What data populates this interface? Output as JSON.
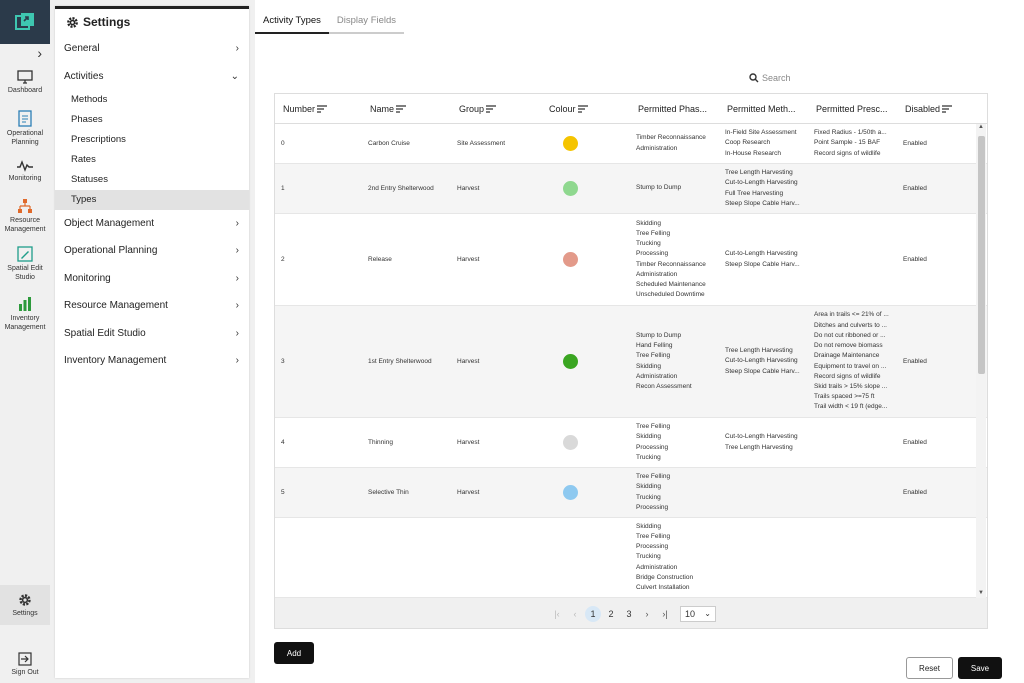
{
  "rail": {
    "items": [
      {
        "label_line1": "Dashboard",
        "label_line2": "",
        "icon": "monitor-icon"
      },
      {
        "label_line1": "Operational",
        "label_line2": "Planning",
        "icon": "clipboard-icon"
      },
      {
        "label_line1": "Monitoring",
        "label_line2": "",
        "icon": "pulse-icon"
      },
      {
        "label_line1": "Resource",
        "label_line2": "Management",
        "icon": "hierarchy-icon"
      },
      {
        "label_line1": "Spatial Edit",
        "label_line2": "Studio",
        "icon": "pencil-map-icon"
      },
      {
        "label_line1": "Inventory",
        "label_line2": "Management",
        "icon": "bar-chart-icon"
      }
    ],
    "settings_label": "Settings",
    "signout_label": "Sign Out",
    "expand_icon": "chevron-right-icon"
  },
  "panel": {
    "title": "Settings",
    "sections": {
      "general": "General",
      "activities": "Activities",
      "object_management": "Object Management",
      "operational_planning": "Operational Planning",
      "monitoring": "Monitoring",
      "resource_management": "Resource Management",
      "spatial_edit_studio": "Spatial Edit Studio",
      "inventory_management": "Inventory Management"
    },
    "activity_items": [
      "Methods",
      "Phases",
      "Prescriptions",
      "Rates",
      "Statuses",
      "Types"
    ],
    "selected_item": "Types"
  },
  "tabs": [
    {
      "label": "Activity Types",
      "active": true
    },
    {
      "label": "Display Fields",
      "active": false
    }
  ],
  "search": {
    "placeholder": "Search"
  },
  "grid": {
    "columns": [
      "Number",
      "Name",
      "Group",
      "Colour",
      "Permitted Phas...",
      "Permitted Meth...",
      "Permitted Presc...",
      "Disabled"
    ],
    "rows": [
      {
        "number": "0",
        "name": "Carbon Cruise",
        "group": "Site Assessment",
        "colour": "#f5c400",
        "phases": [
          "Timber Reconnaissance",
          "Administration"
        ],
        "methods": [
          "In-Field Site Assessment",
          "Coop Research",
          "In-House Research"
        ],
        "prescriptions": [
          "Fixed Radius - 1/50th a...",
          "Point Sample - 15 BAF",
          "Record signs of wildlife"
        ],
        "disabled": "Enabled"
      },
      {
        "number": "1",
        "name": "2nd Entry Shelterwood",
        "group": "Harvest",
        "colour": "#8fd88f",
        "phases": [
          "Stump to Dump"
        ],
        "methods": [
          "Tree Length Harvesting",
          "Cut-to-Length Harvesting",
          "Full Tree Harvesting",
          "Steep Slope Cable Harv..."
        ],
        "prescriptions": [],
        "disabled": "Enabled"
      },
      {
        "number": "2",
        "name": "Release",
        "group": "Harvest",
        "colour": "#e39a8a",
        "phases": [
          "Skidding",
          "Tree Felling",
          "Trucking",
          "Processing",
          "Timber Reconnaissance",
          "Administration",
          "Scheduled Maintenance",
          "Unscheduled Downtime"
        ],
        "methods": [
          "Cut-to-Length Harvesting",
          "Steep Slope Cable Harv..."
        ],
        "prescriptions": [],
        "disabled": "Enabled"
      },
      {
        "number": "3",
        "name": "1st Entry Shelterwood",
        "group": "Harvest",
        "colour": "#3aa521",
        "phases": [
          "Stump to Dump",
          "Hand Felling",
          "Tree Felling",
          "Skidding",
          "Administration",
          "Recon Assessment"
        ],
        "methods": [
          "Tree Length Harvesting",
          "Cut-to-Length Harvesting",
          "Steep Slope Cable Harv..."
        ],
        "prescriptions": [
          "Area in trails <= 21% of ...",
          "Ditches and culverts to ...",
          "Do not cut ribboned or ...",
          "Do not remove biomass",
          "Drainage Maintenance",
          "Equipment to travel on ...",
          "Record signs of wildlife",
          "Skid trails > 15% slope ...",
          "Trails spaced >=75 ft",
          "Trail width < 19 ft (edge..."
        ],
        "disabled": "Enabled"
      },
      {
        "number": "4",
        "name": "Thinning",
        "group": "Harvest",
        "colour": "#d9d9d9",
        "phases": [
          "Tree Felling",
          "Skidding",
          "Processing",
          "Trucking"
        ],
        "methods": [
          "Cut-to-Length Harvesting",
          "Tree Length Harvesting"
        ],
        "prescriptions": [],
        "disabled": "Enabled"
      },
      {
        "number": "5",
        "name": "Selective Thin",
        "group": "Harvest",
        "colour": "#8ec9f0",
        "phases": [
          "Tree Felling",
          "Skidding",
          "Trucking",
          "Processing"
        ],
        "methods": [],
        "prescriptions": [],
        "disabled": "Enabled"
      },
      {
        "number": "",
        "name": "",
        "group": "",
        "colour": "",
        "phases": [
          "Skidding",
          "Tree Felling",
          "Processing",
          "Trucking",
          "Administration",
          "Bridge Construction",
          "Culvert Installation"
        ],
        "methods": [],
        "prescriptions": [],
        "disabled": ""
      }
    ],
    "pagination": {
      "pages": [
        "1",
        "2",
        "3"
      ],
      "current": "1",
      "page_size": "10"
    }
  },
  "buttons": {
    "add": "Add",
    "reset": "Reset",
    "save": "Save"
  }
}
